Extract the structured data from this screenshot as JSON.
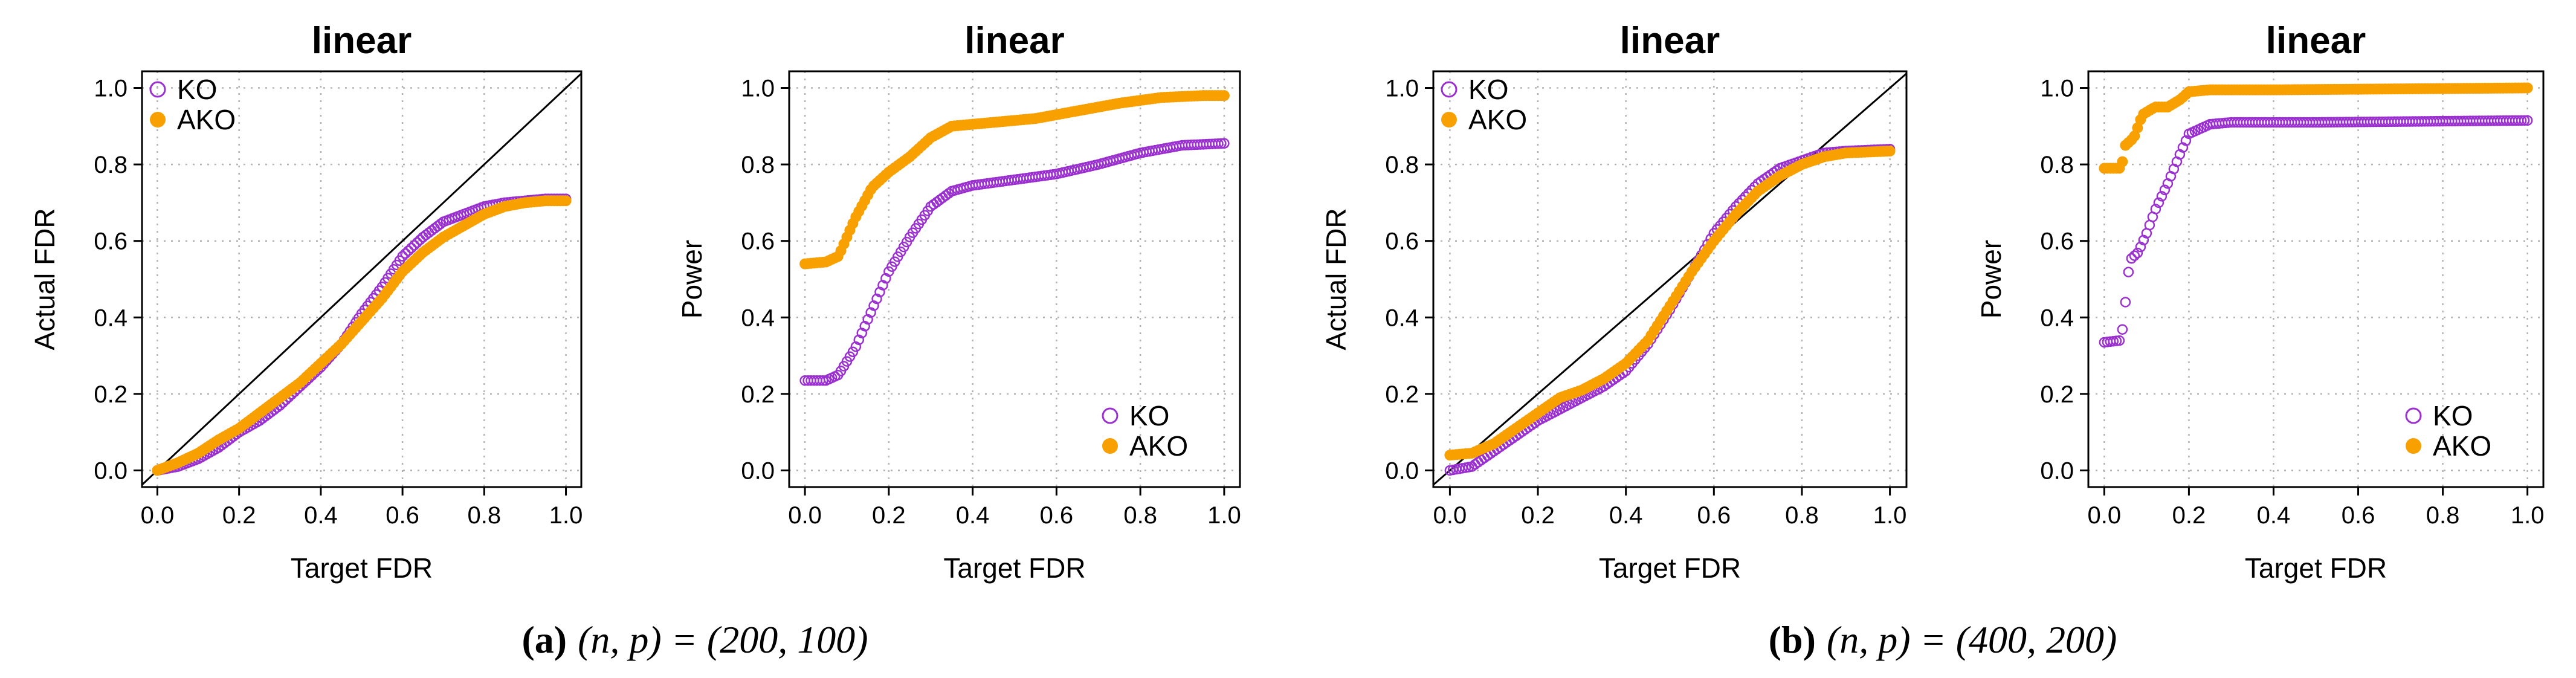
{
  "colors": {
    "KO": "#9b30d0",
    "AKO": "#f7a000"
  },
  "chart_data": [
    {
      "type": "scatter",
      "title": "linear",
      "xlabel": "Target FDR",
      "ylabel": "Actual FDR",
      "xlim": [
        0,
        1
      ],
      "ylim": [
        0,
        1
      ],
      "xticks": [
        "0.0",
        "0.2",
        "0.4",
        "0.6",
        "0.8",
        "1.0"
      ],
      "yticks": [
        "0.0",
        "0.2",
        "0.4",
        "0.6",
        "0.8",
        "1.0"
      ],
      "grid": true,
      "diagonal": true,
      "legend_position": "top-left",
      "series": [
        {
          "name": "KO",
          "marker": "open-circle",
          "curve": [
            [
              0,
              0
            ],
            [
              0.05,
              0.01
            ],
            [
              0.1,
              0.03
            ],
            [
              0.15,
              0.06
            ],
            [
              0.2,
              0.1
            ],
            [
              0.25,
              0.13
            ],
            [
              0.3,
              0.17
            ],
            [
              0.35,
              0.22
            ],
            [
              0.4,
              0.27
            ],
            [
              0.45,
              0.33
            ],
            [
              0.5,
              0.41
            ],
            [
              0.55,
              0.48
            ],
            [
              0.6,
              0.56
            ],
            [
              0.65,
              0.61
            ],
            [
              0.7,
              0.65
            ],
            [
              0.75,
              0.67
            ],
            [
              0.8,
              0.69
            ],
            [
              0.85,
              0.7
            ],
            [
              0.9,
              0.705
            ],
            [
              0.95,
              0.71
            ],
            [
              1,
              0.71
            ]
          ]
        },
        {
          "name": "AKO",
          "marker": "filled-circle",
          "curve": [
            [
              0,
              0
            ],
            [
              0.05,
              0.02
            ],
            [
              0.1,
              0.045
            ],
            [
              0.15,
              0.08
            ],
            [
              0.2,
              0.11
            ],
            [
              0.25,
              0.15
            ],
            [
              0.3,
              0.19
            ],
            [
              0.35,
              0.23
            ],
            [
              0.4,
              0.28
            ],
            [
              0.45,
              0.33
            ],
            [
              0.5,
              0.39
            ],
            [
              0.55,
              0.45
            ],
            [
              0.6,
              0.52
            ],
            [
              0.65,
              0.57
            ],
            [
              0.7,
              0.61
            ],
            [
              0.75,
              0.64
            ],
            [
              0.8,
              0.67
            ],
            [
              0.85,
              0.69
            ],
            [
              0.9,
              0.7
            ],
            [
              0.95,
              0.705
            ],
            [
              1,
              0.705
            ]
          ]
        }
      ]
    },
    {
      "type": "scatter",
      "title": "linear",
      "xlabel": "Target FDR",
      "ylabel": "Power",
      "xlim": [
        0,
        1
      ],
      "ylim": [
        0,
        1
      ],
      "xticks": [
        "0.0",
        "0.2",
        "0.4",
        "0.6",
        "0.8",
        "1.0"
      ],
      "yticks": [
        "0.0",
        "0.2",
        "0.4",
        "0.6",
        "0.8",
        "1.0"
      ],
      "grid": true,
      "diagonal": false,
      "legend_position": "bottom-right",
      "series": [
        {
          "name": "KO",
          "marker": "open-circle",
          "curve": [
            [
              0,
              0.235
            ],
            [
              0.05,
              0.235
            ],
            [
              0.08,
              0.25
            ],
            [
              0.12,
              0.32
            ],
            [
              0.16,
              0.42
            ],
            [
              0.2,
              0.52
            ],
            [
              0.25,
              0.61
            ],
            [
              0.3,
              0.69
            ],
            [
              0.35,
              0.73
            ],
            [
              0.4,
              0.745
            ],
            [
              0.5,
              0.76
            ],
            [
              0.6,
              0.775
            ],
            [
              0.7,
              0.8
            ],
            [
              0.8,
              0.83
            ],
            [
              0.9,
              0.85
            ],
            [
              1,
              0.855
            ]
          ]
        },
        {
          "name": "AKO",
          "marker": "filled-circle",
          "curve": [
            [
              0,
              0.54
            ],
            [
              0.05,
              0.545
            ],
            [
              0.08,
              0.56
            ],
            [
              0.12,
              0.66
            ],
            [
              0.16,
              0.74
            ],
            [
              0.2,
              0.78
            ],
            [
              0.25,
              0.82
            ],
            [
              0.3,
              0.87
            ],
            [
              0.35,
              0.9
            ],
            [
              0.45,
              0.91
            ],
            [
              0.55,
              0.92
            ],
            [
              0.65,
              0.94
            ],
            [
              0.75,
              0.96
            ],
            [
              0.85,
              0.975
            ],
            [
              0.95,
              0.98
            ],
            [
              1,
              0.98
            ]
          ]
        }
      ]
    },
    {
      "type": "scatter",
      "title": "linear",
      "xlabel": "Target FDR",
      "ylabel": "Actual FDR",
      "xlim": [
        0,
        1
      ],
      "ylim": [
        0,
        1
      ],
      "xticks": [
        "0.0",
        "0.2",
        "0.4",
        "0.6",
        "0.8",
        "1.0"
      ],
      "yticks": [
        "0.0",
        "0.2",
        "0.4",
        "0.6",
        "0.8",
        "1.0"
      ],
      "grid": true,
      "diagonal": true,
      "legend_position": "top-left",
      "series": [
        {
          "name": "KO",
          "marker": "open-circle",
          "curve": [
            [
              0,
              0
            ],
            [
              0.05,
              0.01
            ],
            [
              0.1,
              0.05
            ],
            [
              0.15,
              0.09
            ],
            [
              0.2,
              0.13
            ],
            [
              0.25,
              0.16
            ],
            [
              0.3,
              0.19
            ],
            [
              0.35,
              0.22
            ],
            [
              0.4,
              0.26
            ],
            [
              0.45,
              0.33
            ],
            [
              0.5,
              0.42
            ],
            [
              0.55,
              0.52
            ],
            [
              0.6,
              0.62
            ],
            [
              0.65,
              0.69
            ],
            [
              0.7,
              0.75
            ],
            [
              0.75,
              0.79
            ],
            [
              0.8,
              0.81
            ],
            [
              0.85,
              0.83
            ],
            [
              0.9,
              0.835
            ],
            [
              1,
              0.84
            ]
          ]
        },
        {
          "name": "AKO",
          "marker": "filled-circle",
          "curve": [
            [
              0,
              0.04
            ],
            [
              0.05,
              0.045
            ],
            [
              0.1,
              0.07
            ],
            [
              0.15,
              0.11
            ],
            [
              0.2,
              0.15
            ],
            [
              0.25,
              0.19
            ],
            [
              0.3,
              0.21
            ],
            [
              0.35,
              0.24
            ],
            [
              0.4,
              0.28
            ],
            [
              0.45,
              0.34
            ],
            [
              0.5,
              0.43
            ],
            [
              0.55,
              0.52
            ],
            [
              0.6,
              0.6
            ],
            [
              0.65,
              0.67
            ],
            [
              0.7,
              0.73
            ],
            [
              0.75,
              0.77
            ],
            [
              0.8,
              0.8
            ],
            [
              0.85,
              0.82
            ],
            [
              0.9,
              0.83
            ],
            [
              1,
              0.835
            ]
          ]
        }
      ]
    },
    {
      "type": "scatter",
      "title": "linear",
      "xlabel": "Target FDR",
      "ylabel": "Power",
      "xlim": [
        0,
        1
      ],
      "ylim": [
        0,
        1
      ],
      "xticks": [
        "0.0",
        "0.2",
        "0.4",
        "0.6",
        "0.8",
        "1.0"
      ],
      "yticks": [
        "0.0",
        "0.2",
        "0.4",
        "0.6",
        "0.8",
        "1.0"
      ],
      "grid": true,
      "diagonal": false,
      "legend_position": "bottom-right",
      "series": [
        {
          "name": "KO",
          "marker": "open-circle",
          "curve": [
            [
              0,
              0.335
            ],
            [
              0.04,
              0.34
            ],
            [
              0.05,
              0.44
            ],
            [
              0.06,
              0.55
            ],
            [
              0.08,
              0.57
            ],
            [
              0.1,
              0.62
            ],
            [
              0.12,
              0.68
            ],
            [
              0.15,
              0.75
            ],
            [
              0.18,
              0.83
            ],
            [
              0.2,
              0.88
            ],
            [
              0.25,
              0.905
            ],
            [
              0.3,
              0.91
            ],
            [
              0.5,
              0.91
            ],
            [
              1,
              0.915
            ]
          ]
        },
        {
          "name": "AKO",
          "marker": "filled-circle",
          "curve": [
            [
              0,
              0.79
            ],
            [
              0.04,
              0.79
            ],
            [
              0.05,
              0.85
            ],
            [
              0.07,
              0.87
            ],
            [
              0.09,
              0.93
            ],
            [
              0.12,
              0.95
            ],
            [
              0.15,
              0.95
            ],
            [
              0.18,
              0.97
            ],
            [
              0.2,
              0.99
            ],
            [
              0.25,
              0.995
            ],
            [
              0.4,
              0.995
            ],
            [
              1,
              1
            ]
          ]
        }
      ]
    }
  ],
  "captions": [
    {
      "label": "(a)",
      "text": "(n, p) = (200, 100)"
    },
    {
      "label": "(b)",
      "text": "(n, p) = (400, 200)"
    }
  ]
}
